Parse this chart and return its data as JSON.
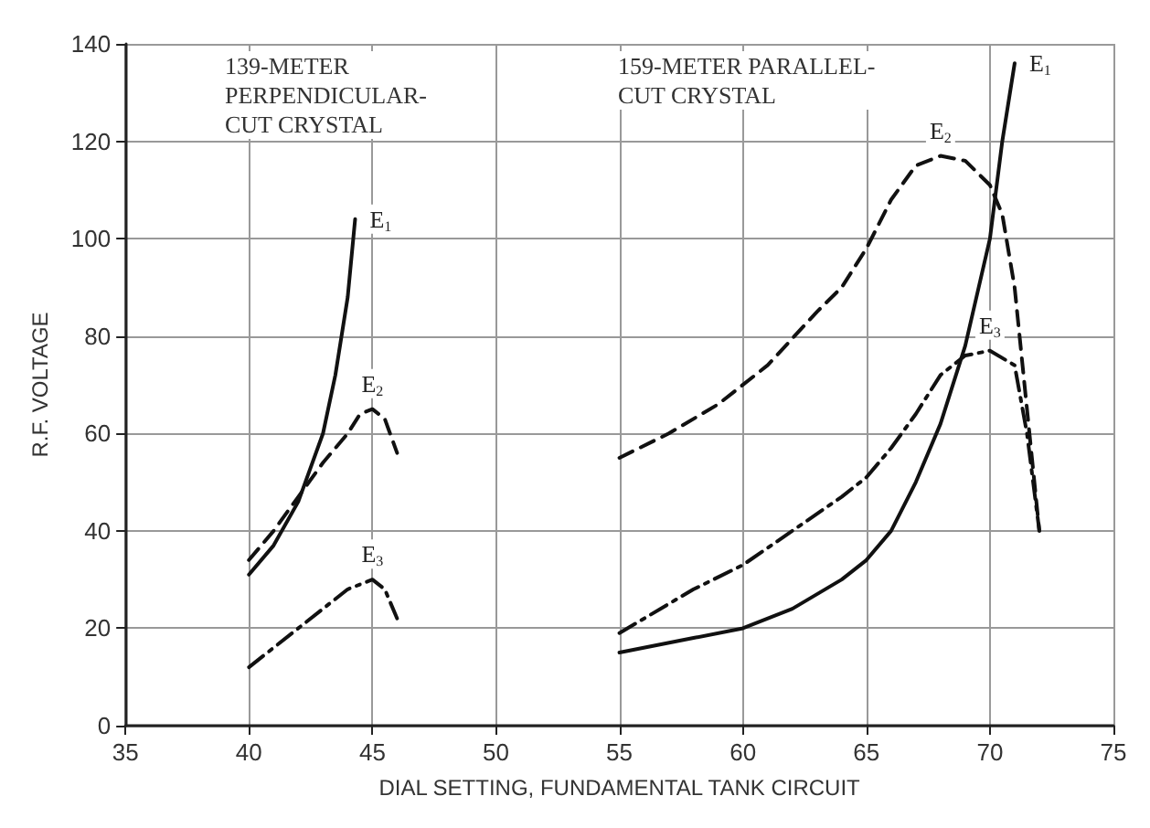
{
  "chart_data": {
    "type": "line",
    "xlabel": "DIAL SETTING, FUNDAMENTAL TANK CIRCUIT",
    "ylabel": "R.F. VOLTAGE",
    "annotations": [
      "139-METER\nPERPENDICULAR-\nCUT CRYSTAL",
      "159-METER PARALLEL-\nCUT CRYSTAL"
    ],
    "xlim": [
      35,
      75
    ],
    "xticks": [
      35,
      40,
      45,
      50,
      55,
      60,
      65,
      70,
      75
    ],
    "ylim": [
      0,
      140
    ],
    "yticks": [
      0,
      20,
      40,
      60,
      80,
      100,
      120,
      140
    ],
    "grid": true,
    "legend": false,
    "marker": "none",
    "series": [
      {
        "name": "E$_{1}$",
        "color": "#111111",
        "line_style": "solid",
        "x": [
          40,
          41,
          42,
          43,
          43.5,
          44,
          44.3
        ],
        "values": [
          31,
          37,
          46,
          60,
          72,
          88,
          104
        ]
      },
      {
        "name": "E$_{2}$",
        "color": "#111111",
        "line_style": "dashed",
        "x": [
          40,
          41,
          42,
          43,
          44,
          44.5,
          45,
          45.5,
          46
        ],
        "values": [
          34,
          40,
          47,
          54,
          60,
          64,
          65,
          63,
          56
        ]
      },
      {
        "name": "E$_{3}$",
        "color": "#111111",
        "line_style": "dotted",
        "x": [
          40,
          41,
          42,
          43,
          44,
          45,
          45.5,
          46
        ],
        "values": [
          12,
          16,
          20,
          24,
          28,
          30,
          28,
          22
        ]
      },
      {
        "name": "E$_{1}$",
        "color": "#111111",
        "line_style": "solid",
        "x": [
          55,
          58,
          60,
          62,
          64,
          65,
          66,
          67,
          68,
          69,
          70,
          70.5,
          71
        ],
        "values": [
          15,
          18,
          20,
          24,
          30,
          34,
          40,
          50,
          62,
          78,
          100,
          120,
          136
        ]
      },
      {
        "name": "E$_{2}$",
        "color": "#111111",
        "line_style": "dashed",
        "x": [
          55,
          57,
          59,
          61,
          63,
          64,
          65,
          66,
          67,
          68,
          69,
          70,
          70.5,
          71,
          71.5,
          72
        ],
        "values": [
          55,
          60,
          66,
          74,
          85,
          90,
          98,
          108,
          115,
          117,
          116,
          111,
          105,
          90,
          65,
          40
        ]
      },
      {
        "name": "E$_{3}$",
        "color": "#111111",
        "line_style": "dotted",
        "x": [
          55,
          58,
          60,
          62,
          64,
          65,
          66,
          67,
          68,
          69,
          70,
          71,
          71.5,
          72
        ],
        "values": [
          19,
          28,
          33,
          40,
          47,
          51,
          57,
          64,
          72,
          76,
          77,
          74,
          60,
          40
        ]
      }
    ]
  }
}
